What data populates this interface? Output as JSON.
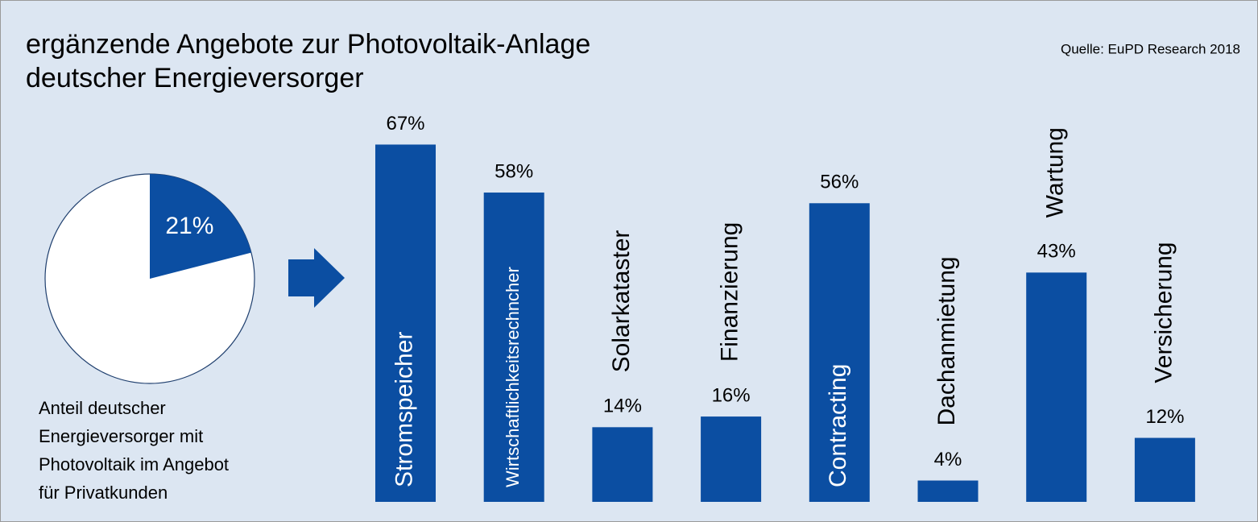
{
  "chart_data": [
    {
      "type": "pie",
      "values": [
        21
      ],
      "value_labels": [
        "21%"
      ],
      "color": "#0b4ea2",
      "caption": [
        "Anteil deutscher",
        "Energieversorger mit",
        "Photovoltaik im Angebot",
        "für Privatkunden"
      ]
    },
    {
      "type": "bar",
      "title": [
        "ergänzende Angebote zur Photovoltaik-Anlage",
        "deutscher Energieversorger"
      ],
      "source": "Quelle: EuPD Research 2018",
      "categories": [
        "Stromspeicher",
        "Wirtschaftlichkeitsrechncher",
        "Solarkataster",
        "Finanzierung",
        "Contracting",
        "Dachanmietung",
        "Wartung",
        "Versicherung"
      ],
      "values": [
        67,
        58,
        14,
        16,
        56,
        4,
        43,
        12
      ],
      "value_labels": [
        "67%",
        "58%",
        "14%",
        "16%",
        "56%",
        "4%",
        "43%",
        "12%"
      ],
      "color": "#0b4ea2"
    }
  ]
}
